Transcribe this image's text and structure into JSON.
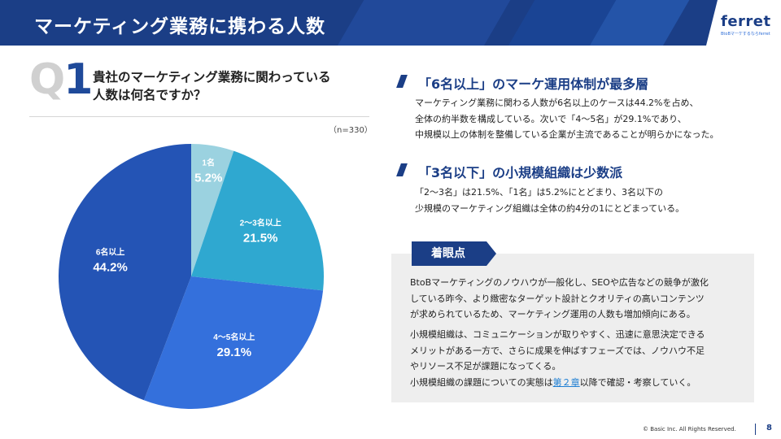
{
  "header": {
    "title": "マーケティング業務に携わる人数",
    "logo": "ferret",
    "logo_sub": "BtoBマーケするならferret"
  },
  "question": {
    "q_prefix": "Q",
    "q_num": "1",
    "line1": "貴社のマーケティング業務に関わっている",
    "line2": "人数は何名ですか？",
    "n_note": "（n=330）"
  },
  "colors": {
    "navy": "#1b3e86",
    "slice_6plus": "#2454b5",
    "slice_4to5": "#3470dc",
    "slice_2to3": "#2fa8d0",
    "slice_1": "#9bd2e0"
  },
  "chart_data": {
    "type": "pie",
    "title": "",
    "slices": [
      {
        "name": "1名",
        "value": 5.2,
        "pct_text": "5.2%"
      },
      {
        "name": "2〜3名以上",
        "value": 21.5,
        "pct_text": "21.5%"
      },
      {
        "name": "4〜5名以上",
        "value": 29.1,
        "pct_text": "29.1%"
      },
      {
        "name": "6名以上",
        "value": 44.2,
        "pct_text": "44.2%"
      }
    ]
  },
  "section1": {
    "title": "「6名以上」のマーケ運用体制が最多層",
    "lines": [
      "マーケティング業務に関わる人数が6名以上のケースは44.2%を占め、",
      "全体の約半数を構成している。次いで「4〜5名」が29.1%であり、",
      "中規模以上の体制を整備している企業が主流であることが明らかになった。"
    ]
  },
  "section2": {
    "title": "「3名以下」の小規模組織は少数派",
    "lines": [
      "「2〜3名」は21.5%、「1名」は5.2%にとどまり、3名以下の",
      "少規模のマーケティング組織は全体の約4分の1にとどまっている。"
    ]
  },
  "focus": {
    "tab": "着眼点",
    "p1": [
      "BtoBマーケティングのノウハウが一般化し、SEOや広告などの競争が激化",
      "している昨今、より緻密なターゲット設計とクオリティの高いコンテンツ",
      "が求められているため、マーケティング運用の人数も増加傾向にある。"
    ],
    "p2": [
      "小規模組織は、コミュニケーションが取りやすく、迅速に意思決定できる",
      "メリットがある一方で、さらに成果を伸ばすフェーズでは、ノウハウ不足",
      "やリソース不足が課題になってくる。"
    ],
    "p2_last_pre": "小規模組織の課題についての実態は",
    "p2_link": "第２章",
    "p2_last_post": "以降で確認・考察していく。"
  },
  "footer": {
    "copyright": "© Basic Inc. All Rights Reserved.",
    "page": "8"
  }
}
